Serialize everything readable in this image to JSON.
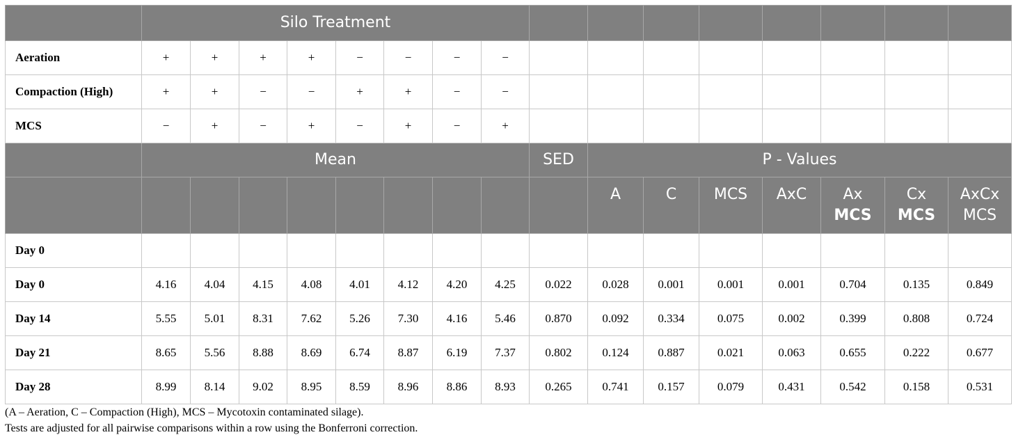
{
  "header": {
    "silo_treatment": "Silo Treatment",
    "mean": "Mean",
    "sed": "SED",
    "p_values": "P - Values"
  },
  "treatments": [
    {
      "label": "Aeration",
      "signs": [
        "+",
        "+",
        "+",
        "+",
        "−",
        "−",
        "−",
        "−"
      ]
    },
    {
      "label": "Compaction (High)",
      "signs": [
        "+",
        "+",
        "−",
        "−",
        "+",
        "+",
        "−",
        "−"
      ]
    },
    {
      "label": "MCS",
      "signs": [
        "−",
        "+",
        "−",
        "+",
        "−",
        "+",
        "−",
        "+"
      ]
    }
  ],
  "p_columns": [
    {
      "line1": "A",
      "line2": ""
    },
    {
      "line1": "C",
      "line2": ""
    },
    {
      "line1": "MCS",
      "line2": ""
    },
    {
      "line1": "AxC",
      "line2": ""
    },
    {
      "line1": "Ax",
      "line2": "MCS"
    },
    {
      "line1": "Cx",
      "line2": "MCS"
    },
    {
      "line1": "AxCx",
      "line2": "MCS"
    }
  ],
  "section_label": "Day 0",
  "rows": [
    {
      "label": "Day 0",
      "means": [
        "4.16",
        "4.04",
        "4.15",
        "4.08",
        "4.01",
        "4.12",
        "4.20",
        "4.25"
      ],
      "sed": "0.022",
      "p": [
        "0.028",
        "0.001",
        "0.001",
        "0.001",
        "0.704",
        "0.135",
        "0.849"
      ]
    },
    {
      "label": "Day 14",
      "means": [
        "5.55",
        "5.01",
        "8.31",
        "7.62",
        "5.26",
        "7.30",
        "4.16",
        "5.46"
      ],
      "sed": "0.870",
      "p": [
        "0.092",
        "0.334",
        "0.075",
        "0.002",
        "0.399",
        "0.808",
        "0.724"
      ]
    },
    {
      "label": "Day 21",
      "means": [
        "8.65",
        "5.56",
        "8.88",
        "8.69",
        "6.74",
        "8.87",
        "6.19",
        "7.37"
      ],
      "sed": "0.802",
      "p": [
        "0.124",
        "0.887",
        "0.021",
        "0.063",
        "0.655",
        "0.222",
        "0.677"
      ]
    },
    {
      "label": "Day 28",
      "means": [
        "8.99",
        "8.14",
        "9.02",
        "8.95",
        "8.59",
        "8.96",
        "8.86",
        "8.93"
      ],
      "sed": "0.265",
      "p": [
        "0.741",
        "0.157",
        "0.079",
        "0.431",
        "0.542",
        "0.158",
        "0.531"
      ]
    }
  ],
  "notes": [
    "(A – Aeration, C – Compaction (High), MCS – Mycotoxin contaminated silage).",
    "Tests are adjusted for all pairwise comparisons within a row using the Bonferroni correction."
  ]
}
